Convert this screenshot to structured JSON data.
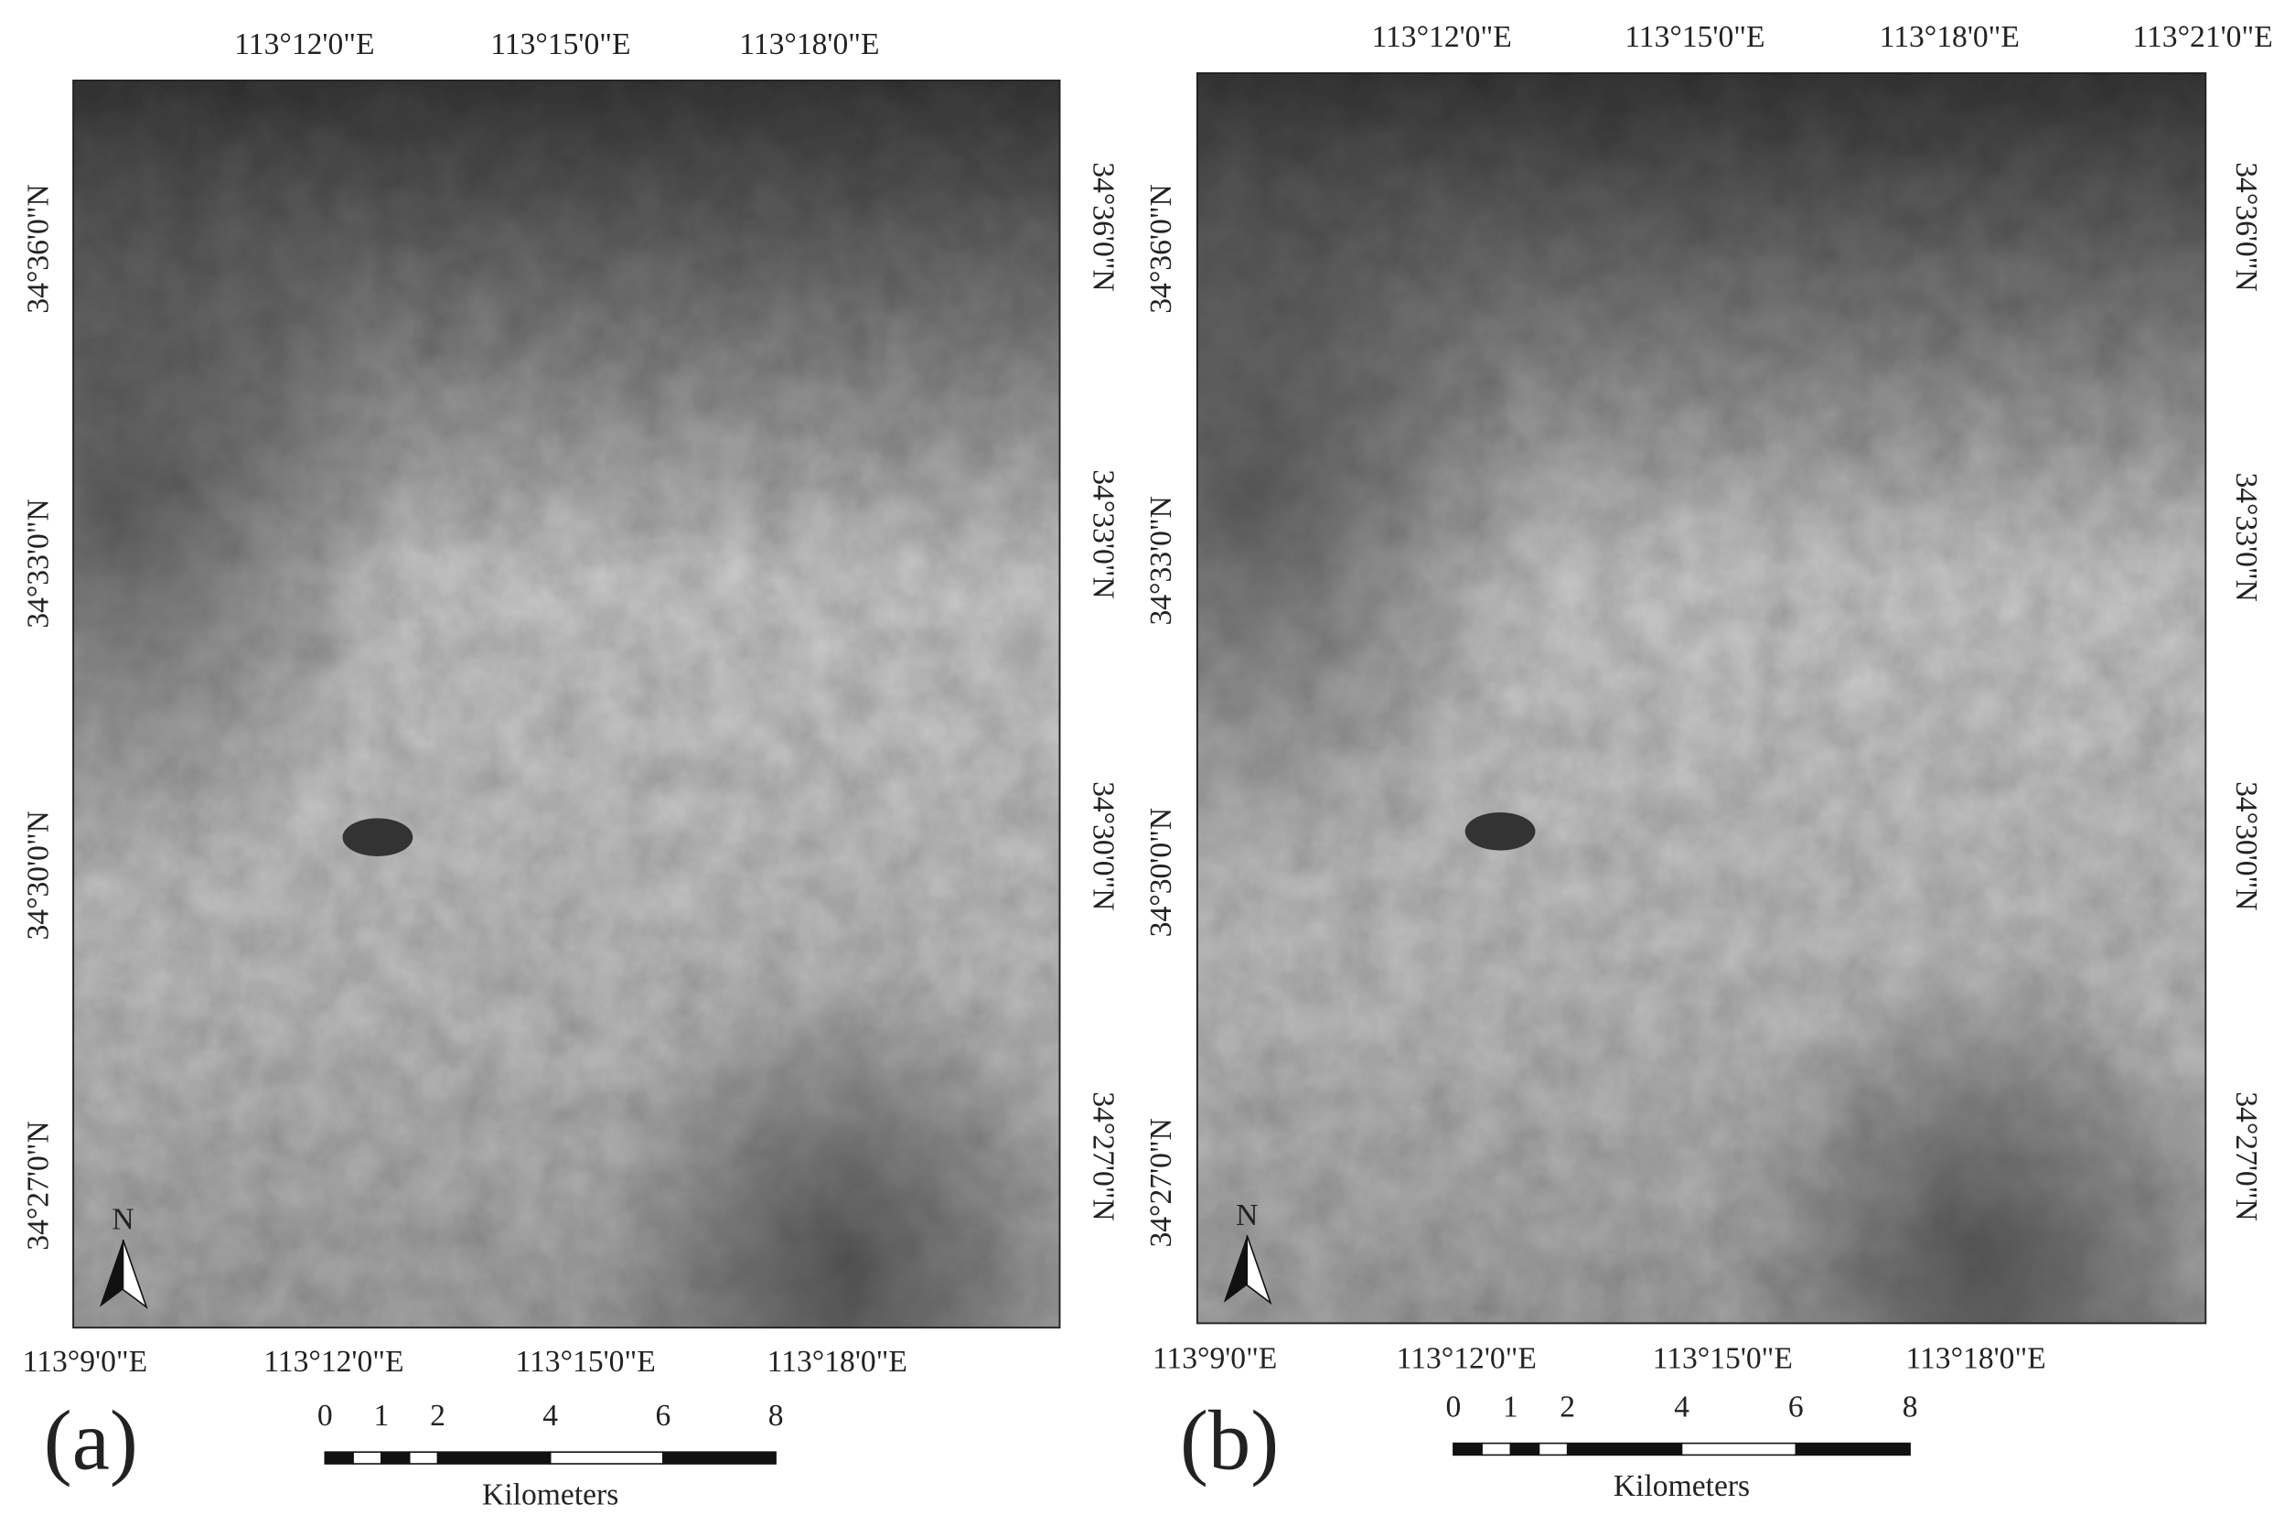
{
  "panels": [
    {
      "label": "(a)",
      "north": "N",
      "top_ticks": [
        "113°12'0\"E",
        "113°15'0\"E",
        "113°18'0\"E"
      ],
      "bottom_ticks": [
        "113°9'0\"E",
        "113°12'0\"E",
        "113°15'0\"E",
        "113°18'0\"E"
      ],
      "left_ticks": [
        "34°36'0\"N",
        "34°33'0\"N",
        "34°30'0\"N",
        "34°27'0\"N"
      ],
      "right_ticks": [
        "34°36'0\"N",
        "34°33'0\"N",
        "34°30'0\"N",
        "34°27'0\"N"
      ],
      "scale_bar": {
        "labels": [
          0,
          1,
          2,
          4,
          6,
          8
        ],
        "unit": "Kilometers"
      }
    },
    {
      "label": "(b)",
      "north": "N",
      "top_ticks": [
        "113°12'0\"E",
        "113°15'0\"E",
        "113°18'0\"E",
        "113°21'0\"E"
      ],
      "bottom_ticks": [
        "113°9'0\"E",
        "113°12'0\"E",
        "113°15'0\"E",
        "113°18'0\"E"
      ],
      "left_ticks": [
        "34°36'0\"N",
        "34°33'0\"N",
        "34°30'0\"N",
        "34°27'0\"N"
      ],
      "right_ticks": [
        "34°36'0\"N",
        "34°33'0\"N",
        "34°30'0\"N",
        "34°27'0\"N"
      ],
      "scale_bar": {
        "labels": [
          0,
          1,
          2,
          4,
          6,
          8
        ],
        "unit": "Kilometers"
      }
    }
  ]
}
